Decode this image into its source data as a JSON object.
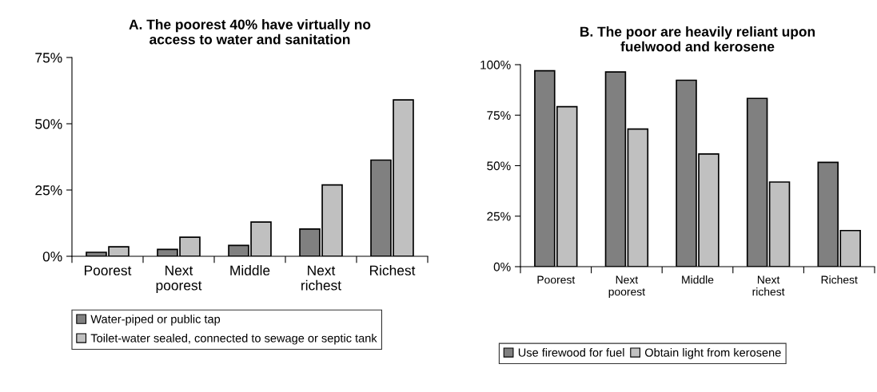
{
  "chart_data": [
    {
      "type": "bar",
      "title": "A. The poorest 40% have virtually no\naccess to water and sanitation",
      "categories": [
        "Poorest",
        "Next\npoorest",
        "Middle",
        "Next\nrichest",
        "Richest"
      ],
      "series": [
        {
          "name": "Water-piped or public tap",
          "color": "#808080",
          "values": [
            1.5,
            2.6,
            4.1,
            10.3,
            36.3
          ]
        },
        {
          "name": "Toilet-water sealed, connected to sewage or septic tank",
          "color": "#c0c0c0",
          "values": [
            3.6,
            7.2,
            12.9,
            26.9,
            59
          ]
        }
      ],
      "ylim": [
        0,
        75
      ],
      "yticks": [
        {
          "value": 0,
          "label": "0%"
        },
        {
          "value": 25,
          "label": "25%"
        },
        {
          "value": 50,
          "label": "50%"
        },
        {
          "value": 75,
          "label": "75%"
        }
      ],
      "grid": false,
      "legend": "bottom"
    },
    {
      "type": "bar",
      "title": "B. The poor are heavily reliant upon\nfuelwood and kerosene",
      "categories": [
        "Poorest",
        "Next\npoorest",
        "Middle",
        "Next\nrichest",
        "Richest"
      ],
      "series": [
        {
          "name": "Use firewood for fuel",
          "color": "#808080",
          "values": [
            97,
            96.4,
            92.3,
            83.3,
            51.6
          ]
        },
        {
          "name": "Obtain light from kerosene",
          "color": "#c0c0c0",
          "values": [
            79.2,
            68.1,
            55.8,
            41.9,
            17.9
          ]
        }
      ],
      "ylim": [
        0,
        100
      ],
      "yticks": [
        {
          "value": 0,
          "label": "0%"
        },
        {
          "value": 25,
          "label": "25%"
        },
        {
          "value": 50,
          "label": "50%"
        },
        {
          "value": 75,
          "label": "75%"
        },
        {
          "value": 100,
          "label": "100%"
        }
      ],
      "grid": false,
      "legend": "bottom"
    }
  ]
}
